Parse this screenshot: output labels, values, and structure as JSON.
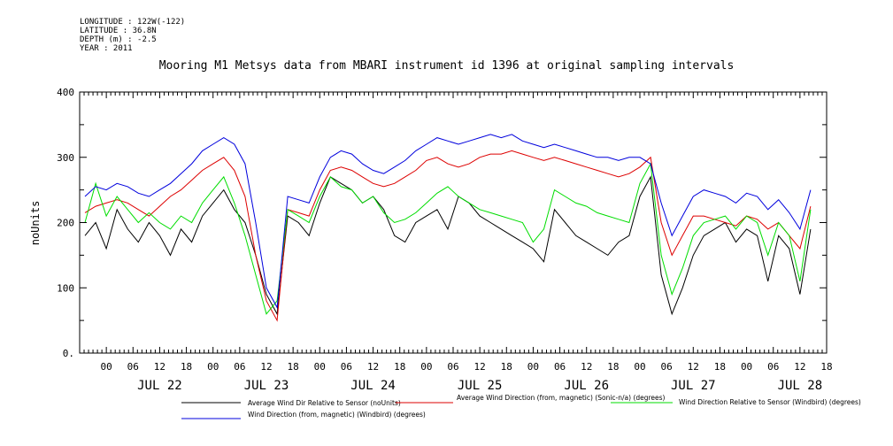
{
  "meta": {
    "longitude": "LONGITUDE : 122W(-122)",
    "latitude": "LATITUDE : 36.8N",
    "depth": "DEPTH (m) : -2.5",
    "year": "YEAR : 2011"
  },
  "chart_data": {
    "type": "line",
    "title": "Mooring M1 Metsys data from MBARI instrument id 1396 at original sampling intervals",
    "ylabel": "noUnits",
    "xlabel": "",
    "ylim": [
      0,
      400
    ],
    "yticks": [
      0,
      100,
      200,
      300,
      400
    ],
    "ytick_labels": [
      "0.",
      "100",
      "200",
      "300",
      "400"
    ],
    "xlim": [
      -0.25,
      6.75
    ],
    "hour_ticks": [
      "00",
      "06",
      "12",
      "18"
    ],
    "day_labels": [
      "JUL 22",
      "JUL 23",
      "JUL 24",
      "JUL 25",
      "JUL 26",
      "JUL 27",
      "JUL 28"
    ],
    "grid": false,
    "legend_position": "bottom",
    "series": [
      {
        "name": "Average Wind Dir Relative to Sensor (noUnits)",
        "color": "#000000",
        "x": [
          -0.2,
          -0.1,
          0,
          0.1,
          0.2,
          0.3,
          0.4,
          0.5,
          0.6,
          0.7,
          0.8,
          0.9,
          1.0,
          1.1,
          1.2,
          1.3,
          1.4,
          1.5,
          1.6,
          1.7,
          1.8,
          1.9,
          2.0,
          2.1,
          2.2,
          2.3,
          2.4,
          2.5,
          2.6,
          2.7,
          2.8,
          2.9,
          3.0,
          3.1,
          3.2,
          3.3,
          3.4,
          3.5,
          3.6,
          3.7,
          3.8,
          3.9,
          4.0,
          4.1,
          4.2,
          4.3,
          4.4,
          4.5,
          4.6,
          4.7,
          4.8,
          4.9,
          5.0,
          5.1,
          5.2,
          5.3,
          5.4,
          5.5,
          5.6,
          5.7,
          5.8,
          5.9,
          6.0,
          6.1,
          6.2,
          6.3,
          6.4,
          6.5,
          6.6
        ],
        "values": [
          180,
          200,
          160,
          220,
          190,
          170,
          200,
          180,
          150,
          190,
          170,
          210,
          230,
          250,
          220,
          200,
          150,
          90,
          60,
          210,
          200,
          180,
          230,
          270,
          260,
          250,
          230,
          240,
          220,
          180,
          170,
          200,
          210,
          220,
          190,
          240,
          230,
          210,
          200,
          190,
          180,
          170,
          160,
          140,
          220,
          200,
          180,
          170,
          160,
          150,
          170,
          180,
          240,
          270,
          120,
          60,
          100,
          150,
          180,
          190,
          200,
          170,
          190,
          180,
          110,
          180,
          160,
          90,
          190
        ]
      },
      {
        "name": "Average Wind Direction (from, magnetic) (Sonic-n/a) (degrees)",
        "color": "#dd0000",
        "x": [
          -0.2,
          -0.1,
          0,
          0.1,
          0.2,
          0.3,
          0.4,
          0.5,
          0.6,
          0.7,
          0.8,
          0.9,
          1.0,
          1.1,
          1.2,
          1.3,
          1.4,
          1.5,
          1.6,
          1.7,
          1.8,
          1.9,
          2.0,
          2.1,
          2.2,
          2.3,
          2.4,
          2.5,
          2.6,
          2.7,
          2.8,
          2.9,
          3.0,
          3.1,
          3.2,
          3.3,
          3.4,
          3.5,
          3.6,
          3.7,
          3.8,
          3.9,
          4.0,
          4.1,
          4.2,
          4.3,
          4.4,
          4.5,
          4.6,
          4.7,
          4.8,
          4.9,
          5.0,
          5.1,
          5.2,
          5.3,
          5.4,
          5.5,
          5.6,
          5.7,
          5.8,
          5.9,
          6.0,
          6.1,
          6.2,
          6.3,
          6.4,
          6.5,
          6.6
        ],
        "values": [
          215,
          225,
          230,
          235,
          230,
          220,
          210,
          225,
          240,
          250,
          265,
          280,
          290,
          300,
          280,
          240,
          150,
          80,
          50,
          220,
          215,
          210,
          250,
          280,
          285,
          280,
          270,
          260,
          255,
          260,
          270,
          280,
          295,
          300,
          290,
          285,
          290,
          300,
          305,
          305,
          310,
          305,
          300,
          295,
          300,
          295,
          290,
          285,
          280,
          275,
          270,
          275,
          285,
          300,
          200,
          150,
          180,
          210,
          210,
          205,
          200,
          195,
          210,
          205,
          190,
          200,
          180,
          160,
          225
        ]
      },
      {
        "name": "Wind Direction Relative to Sensor (Windbird) (degrees)",
        "color": "#00dd00",
        "x": [
          -0.2,
          -0.1,
          0,
          0.1,
          0.2,
          0.3,
          0.4,
          0.5,
          0.6,
          0.7,
          0.8,
          0.9,
          1.0,
          1.1,
          1.2,
          1.3,
          1.4,
          1.5,
          1.6,
          1.7,
          1.8,
          1.9,
          2.0,
          2.1,
          2.2,
          2.3,
          2.4,
          2.5,
          2.6,
          2.7,
          2.8,
          2.9,
          3.0,
          3.1,
          3.2,
          3.3,
          3.4,
          3.5,
          3.6,
          3.7,
          3.8,
          3.9,
          4.0,
          4.1,
          4.2,
          4.3,
          4.4,
          4.5,
          4.6,
          4.7,
          4.8,
          4.9,
          5.0,
          5.1,
          5.2,
          5.3,
          5.4,
          5.5,
          5.6,
          5.7,
          5.8,
          5.9,
          6.0,
          6.1,
          6.2,
          6.3,
          6.4,
          6.5,
          6.6
        ],
        "values": [
          200,
          260,
          210,
          240,
          220,
          200,
          215,
          200,
          190,
          210,
          200,
          230,
          250,
          270,
          230,
          180,
          120,
          60,
          80,
          220,
          210,
          200,
          240,
          270,
          255,
          250,
          230,
          240,
          215,
          200,
          205,
          215,
          230,
          245,
          255,
          240,
          230,
          220,
          215,
          210,
          205,
          200,
          170,
          190,
          250,
          240,
          230,
          225,
          215,
          210,
          205,
          200,
          260,
          290,
          150,
          90,
          130,
          180,
          200,
          205,
          210,
          190,
          210,
          200,
          150,
          200,
          180,
          110,
          220
        ]
      },
      {
        "name": "Wind Direction (from, magnetic) (Windbird) (degrees)",
        "color": "#0000dd",
        "x": [
          -0.2,
          -0.1,
          0,
          0.1,
          0.2,
          0.3,
          0.4,
          0.5,
          0.6,
          0.7,
          0.8,
          0.9,
          1.0,
          1.1,
          1.2,
          1.3,
          1.4,
          1.5,
          1.6,
          1.7,
          1.8,
          1.9,
          2.0,
          2.1,
          2.2,
          2.3,
          2.4,
          2.5,
          2.6,
          2.7,
          2.8,
          2.9,
          3.0,
          3.1,
          3.2,
          3.3,
          3.4,
          3.5,
          3.6,
          3.7,
          3.8,
          3.9,
          4.0,
          4.1,
          4.2,
          4.3,
          4.4,
          4.5,
          4.6,
          4.7,
          4.8,
          4.9,
          5.0,
          5.1,
          5.2,
          5.3,
          5.4,
          5.5,
          5.6,
          5.7,
          5.8,
          5.9,
          6.0,
          6.1,
          6.2,
          6.3,
          6.4,
          6.5,
          6.6
        ],
        "values": [
          240,
          255,
          250,
          260,
          255,
          245,
          240,
          250,
          260,
          275,
          290,
          310,
          320,
          330,
          320,
          290,
          200,
          100,
          70,
          240,
          235,
          230,
          270,
          300,
          310,
          305,
          290,
          280,
          275,
          285,
          295,
          310,
          320,
          330,
          325,
          320,
          325,
          330,
          335,
          330,
          335,
          325,
          320,
          315,
          320,
          315,
          310,
          305,
          300,
          300,
          295,
          300,
          300,
          290,
          230,
          180,
          210,
          240,
          250,
          245,
          240,
          230,
          245,
          240,
          220,
          235,
          215,
          190,
          250
        ]
      }
    ]
  }
}
